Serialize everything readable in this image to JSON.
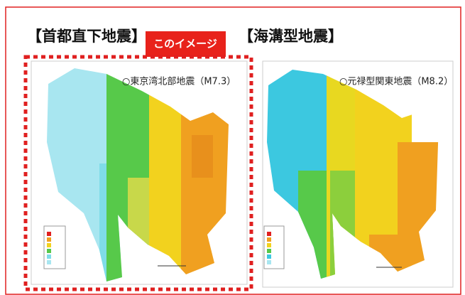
{
  "left_panel": {
    "title": "【首都直下地震】",
    "badge": "このイメージ",
    "map_caption": "○東京湾北部地震（M7.3）"
  },
  "right_panel": {
    "title": "【海溝型地震】",
    "map_caption": "○元禄型関東地震（M8.2）"
  }
}
